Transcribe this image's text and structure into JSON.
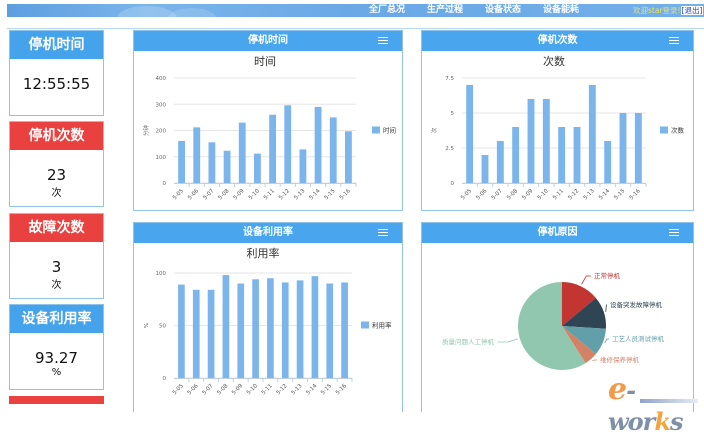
{
  "topbar": {
    "nav": [
      "全厂总况",
      "生产过程",
      "设备状态",
      "设备能耗"
    ],
    "welcome_text": "欢迎star登录!",
    "logout_label": "[退出]"
  },
  "stats": [
    {
      "title": "停机时间",
      "value": "12:55:55",
      "unit": "",
      "color": "#44a3ea"
    },
    {
      "title": "停机次数",
      "value": "23",
      "unit": "次",
      "color": "#e84140"
    },
    {
      "title": "故障次数",
      "value": "3",
      "unit": "次",
      "color": "#e84140"
    },
    {
      "title": "设备利用率",
      "value": "93.27",
      "unit": "%",
      "color": "#44a3ea"
    }
  ],
  "panels": {
    "downtime": {
      "header": "停机时间"
    },
    "stops": {
      "header": "停机次数"
    },
    "utilization": {
      "header": "设备利用率"
    },
    "reasons": {
      "header": "停机原因"
    }
  },
  "watermark": "e-works",
  "chart_data": [
    {
      "type": "bar",
      "title": "时间",
      "ylabel": "分钟",
      "xlabel": "",
      "categories": [
        "5-05",
        "5-06",
        "5-07",
        "5-08",
        "5-09",
        "5-10",
        "5-11",
        "5-12",
        "5-13",
        "5-14",
        "5-15",
        "5-16"
      ],
      "series": [
        {
          "name": "时间",
          "values": [
            160,
            212,
            155,
            123,
            230,
            112,
            260,
            296,
            128,
            290,
            250,
            197
          ]
        }
      ],
      "ylim": [
        0,
        400
      ],
      "yticks": [
        0,
        100,
        200,
        300,
        400
      ],
      "grid": true,
      "legend_position": "right",
      "color": "#7cb5ec"
    },
    {
      "type": "bar",
      "title": "次数",
      "ylabel": "次",
      "xlabel": "",
      "categories": [
        "5-05",
        "5-06",
        "5-07",
        "5-08",
        "5-09",
        "5-10",
        "5-11",
        "5-12",
        "5-13",
        "5-14",
        "5-15",
        "5-16"
      ],
      "series": [
        {
          "name": "次数",
          "values": [
            7,
            2,
            3,
            4,
            6,
            6,
            4,
            4,
            7,
            3,
            5,
            5
          ]
        }
      ],
      "ylim": [
        0,
        7.5
      ],
      "yticks": [
        0,
        2.5,
        5,
        7.5
      ],
      "grid": true,
      "legend_position": "right",
      "color": "#7cb5ec"
    },
    {
      "type": "bar",
      "title": "利用率",
      "ylabel": "%",
      "xlabel": "",
      "categories": [
        "5-05",
        "5-06",
        "5-07",
        "5-08",
        "5-09",
        "5-10",
        "5-11",
        "5-12",
        "5-13",
        "5-14",
        "5-15",
        "5-16"
      ],
      "series": [
        {
          "name": "利用率",
          "values": [
            89,
            84,
            84,
            98,
            90,
            94,
            95,
            91,
            93,
            97,
            90,
            91
          ]
        }
      ],
      "ylim": [
        0,
        100
      ],
      "yticks": [
        0,
        50,
        100
      ],
      "grid": true,
      "legend_position": "right",
      "color": "#7cb5ec"
    },
    {
      "type": "pie",
      "title": "停机原因",
      "slices": [
        {
          "name": "正常停机",
          "value": 14,
          "color": "#c23531"
        },
        {
          "name": "设备突发故障停机",
          "value": 12,
          "color": "#2f4554"
        },
        {
          "name": "工艺人员测试停机",
          "value": 10,
          "color": "#61a0a8"
        },
        {
          "name": "维修保养停机",
          "value": 5,
          "color": "#d48265"
        },
        {
          "name": "质量问题人工停机",
          "value": 59,
          "color": "#91c7ae"
        }
      ]
    }
  ]
}
